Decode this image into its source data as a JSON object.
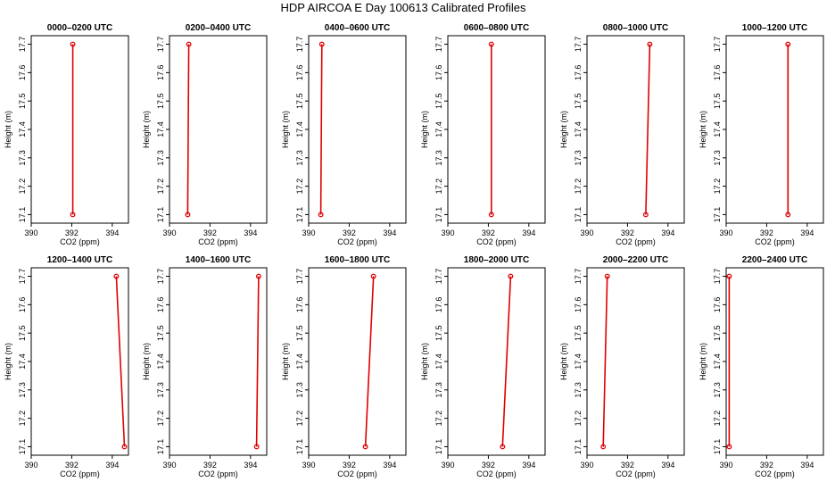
{
  "title": "HDP AIRCOA E  Day 100613  Calibrated Profiles",
  "chart_data": [
    {
      "type": "line",
      "title": "0000–0200 UTC",
      "xlabel": "CO2 (ppm)",
      "ylabel": "Height (m)",
      "xlim": [
        390,
        394.8
      ],
      "ylim": [
        17.07,
        17.73
      ],
      "xticks": [
        390,
        392,
        394
      ],
      "yticks": [
        17.1,
        17.2,
        17.3,
        17.4,
        17.5,
        17.6,
        17.7
      ],
      "series": [
        {
          "x": [
            392.05,
            392.05
          ],
          "y": [
            17.1,
            17.7
          ]
        }
      ]
    },
    {
      "type": "line",
      "title": "0200–0400 UTC",
      "xlabel": "CO2 (ppm)",
      "ylabel": "Height (m)",
      "xlim": [
        390,
        394.8
      ],
      "ylim": [
        17.07,
        17.73
      ],
      "xticks": [
        390,
        392,
        394
      ],
      "yticks": [
        17.1,
        17.2,
        17.3,
        17.4,
        17.5,
        17.6,
        17.7
      ],
      "series": [
        {
          "x": [
            390.9,
            390.95
          ],
          "y": [
            17.1,
            17.7
          ]
        }
      ]
    },
    {
      "type": "line",
      "title": "0400–0600 UTC",
      "xlabel": "CO2 (ppm)",
      "ylabel": "Height (m)",
      "xlim": [
        390,
        394.8
      ],
      "ylim": [
        17.07,
        17.73
      ],
      "xticks": [
        390,
        392,
        394
      ],
      "yticks": [
        17.1,
        17.2,
        17.3,
        17.4,
        17.5,
        17.6,
        17.7
      ],
      "series": [
        {
          "x": [
            390.6,
            390.65
          ],
          "y": [
            17.1,
            17.7
          ]
        }
      ]
    },
    {
      "type": "line",
      "title": "0600–0800 UTC",
      "xlabel": "CO2 (ppm)",
      "ylabel": "Height (m)",
      "xlim": [
        390,
        394.8
      ],
      "ylim": [
        17.07,
        17.73
      ],
      "xticks": [
        390,
        392,
        394
      ],
      "yticks": [
        17.1,
        17.2,
        17.3,
        17.4,
        17.5,
        17.6,
        17.7
      ],
      "series": [
        {
          "x": [
            392.15,
            392.15
          ],
          "y": [
            17.1,
            17.7
          ]
        }
      ]
    },
    {
      "type": "line",
      "title": "0800–1000 UTC",
      "xlabel": "CO2 (ppm)",
      "ylabel": "Height (m)",
      "xlim": [
        390,
        394.8
      ],
      "ylim": [
        17.07,
        17.73
      ],
      "xticks": [
        390,
        392,
        394
      ],
      "yticks": [
        17.1,
        17.2,
        17.3,
        17.4,
        17.5,
        17.6,
        17.7
      ],
      "series": [
        {
          "x": [
            392.9,
            393.1
          ],
          "y": [
            17.1,
            17.7
          ]
        }
      ]
    },
    {
      "type": "line",
      "title": "1000–1200 UTC",
      "xlabel": "CO2 (ppm)",
      "ylabel": "Height (m)",
      "xlim": [
        390,
        394.8
      ],
      "ylim": [
        17.07,
        17.73
      ],
      "xticks": [
        390,
        392,
        394
      ],
      "yticks": [
        17.1,
        17.2,
        17.3,
        17.4,
        17.5,
        17.6,
        17.7
      ],
      "series": [
        {
          "x": [
            393.05,
            393.05
          ],
          "y": [
            17.1,
            17.7
          ]
        }
      ]
    },
    {
      "type": "line",
      "title": "1200–1400 UTC",
      "xlabel": "CO2 (ppm)",
      "ylabel": "Height (m)",
      "xlim": [
        390,
        394.8
      ],
      "ylim": [
        17.07,
        17.73
      ],
      "xticks": [
        390,
        392,
        394
      ],
      "yticks": [
        17.1,
        17.2,
        17.3,
        17.4,
        17.5,
        17.6,
        17.7
      ],
      "series": [
        {
          "x": [
            394.6,
            394.2
          ],
          "y": [
            17.1,
            17.7
          ]
        }
      ]
    },
    {
      "type": "line",
      "title": "1400–1600 UTC",
      "xlabel": "CO2 (ppm)",
      "ylabel": "Height (m)",
      "xlim": [
        390,
        394.8
      ],
      "ylim": [
        17.07,
        17.73
      ],
      "xticks": [
        390,
        392,
        394
      ],
      "yticks": [
        17.1,
        17.2,
        17.3,
        17.4,
        17.5,
        17.6,
        17.7
      ],
      "series": [
        {
          "x": [
            394.3,
            394.4
          ],
          "y": [
            17.1,
            17.7
          ]
        }
      ]
    },
    {
      "type": "line",
      "title": "1600–1800 UTC",
      "xlabel": "CO2 (ppm)",
      "ylabel": "Height (m)",
      "xlim": [
        390,
        394.8
      ],
      "ylim": [
        17.07,
        17.73
      ],
      "xticks": [
        390,
        392,
        394
      ],
      "yticks": [
        17.1,
        17.2,
        17.3,
        17.4,
        17.5,
        17.6,
        17.7
      ],
      "series": [
        {
          "x": [
            392.8,
            393.2
          ],
          "y": [
            17.1,
            17.7
          ]
        }
      ]
    },
    {
      "type": "line",
      "title": "1800–2000 UTC",
      "xlabel": "CO2 (ppm)",
      "ylabel": "Height (m)",
      "xlim": [
        390,
        394.8
      ],
      "ylim": [
        17.07,
        17.73
      ],
      "xticks": [
        390,
        392,
        394
      ],
      "yticks": [
        17.1,
        17.2,
        17.3,
        17.4,
        17.5,
        17.6,
        17.7
      ],
      "series": [
        {
          "x": [
            392.7,
            393.1
          ],
          "y": [
            17.1,
            17.7
          ]
        }
      ]
    },
    {
      "type": "line",
      "title": "2000–2200 UTC",
      "xlabel": "CO2 (ppm)",
      "ylabel": "Height (m)",
      "xlim": [
        390,
        394.8
      ],
      "ylim": [
        17.07,
        17.73
      ],
      "xticks": [
        390,
        392,
        394
      ],
      "yticks": [
        17.1,
        17.2,
        17.3,
        17.4,
        17.5,
        17.6,
        17.7
      ],
      "series": [
        {
          "x": [
            390.8,
            391.0
          ],
          "y": [
            17.1,
            17.7
          ]
        }
      ]
    },
    {
      "type": "line",
      "title": "2200–2400 UTC",
      "xlabel": "CO2 (ppm)",
      "ylabel": "Height (m)",
      "xlim": [
        390,
        394.8
      ],
      "ylim": [
        17.07,
        17.73
      ],
      "xticks": [
        390,
        392,
        394
      ],
      "yticks": [
        17.1,
        17.2,
        17.3,
        17.4,
        17.5,
        17.6,
        17.7
      ],
      "series": [
        {
          "x": [
            390.15,
            390.15
          ],
          "y": [
            17.1,
            17.7
          ]
        }
      ]
    }
  ]
}
